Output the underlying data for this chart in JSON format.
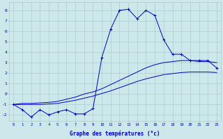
{
  "xlabel": "Graphe des températures (°c)",
  "xlim": [
    -0.5,
    23.5
  ],
  "ylim": [
    -2.6,
    8.8
  ],
  "yticks": [
    -2,
    -1,
    0,
    1,
    2,
    3,
    4,
    5,
    6,
    7,
    8
  ],
  "xticks": [
    0,
    1,
    2,
    3,
    4,
    5,
    6,
    7,
    8,
    9,
    10,
    11,
    12,
    13,
    14,
    15,
    16,
    17,
    18,
    19,
    20,
    21,
    22,
    23
  ],
  "bg_color": "#cce8ea",
  "grid_color": "#aacdd0",
  "line_color": "#0000bb",
  "hours": [
    0,
    1,
    2,
    3,
    4,
    5,
    6,
    7,
    8,
    9,
    10,
    11,
    12,
    13,
    14,
    15,
    16,
    17,
    18,
    19,
    20,
    21,
    22,
    23
  ],
  "temp_curve": [
    -1.0,
    -1.5,
    -2.2,
    -1.5,
    -2.0,
    -1.7,
    -1.5,
    -1.9,
    -1.9,
    -1.4,
    3.5,
    6.2,
    8.0,
    8.1,
    7.2,
    8.0,
    7.5,
    5.2,
    3.8,
    3.8,
    3.2,
    3.2,
    3.2,
    2.5
  ],
  "trend_upper": [
    -1.0,
    -0.9,
    -0.9,
    -0.85,
    -0.8,
    -0.7,
    -0.5,
    -0.3,
    0.0,
    0.2,
    0.5,
    0.9,
    1.3,
    1.7,
    2.1,
    2.5,
    2.8,
    3.0,
    3.1,
    3.2,
    3.2,
    3.1,
    3.1,
    3.0
  ],
  "trend_lower": [
    -1.0,
    -1.0,
    -1.0,
    -1.0,
    -0.95,
    -0.9,
    -0.75,
    -0.6,
    -0.4,
    -0.2,
    0.05,
    0.3,
    0.6,
    0.9,
    1.2,
    1.45,
    1.65,
    1.85,
    1.95,
    2.05,
    2.1,
    2.1,
    2.1,
    2.05
  ]
}
